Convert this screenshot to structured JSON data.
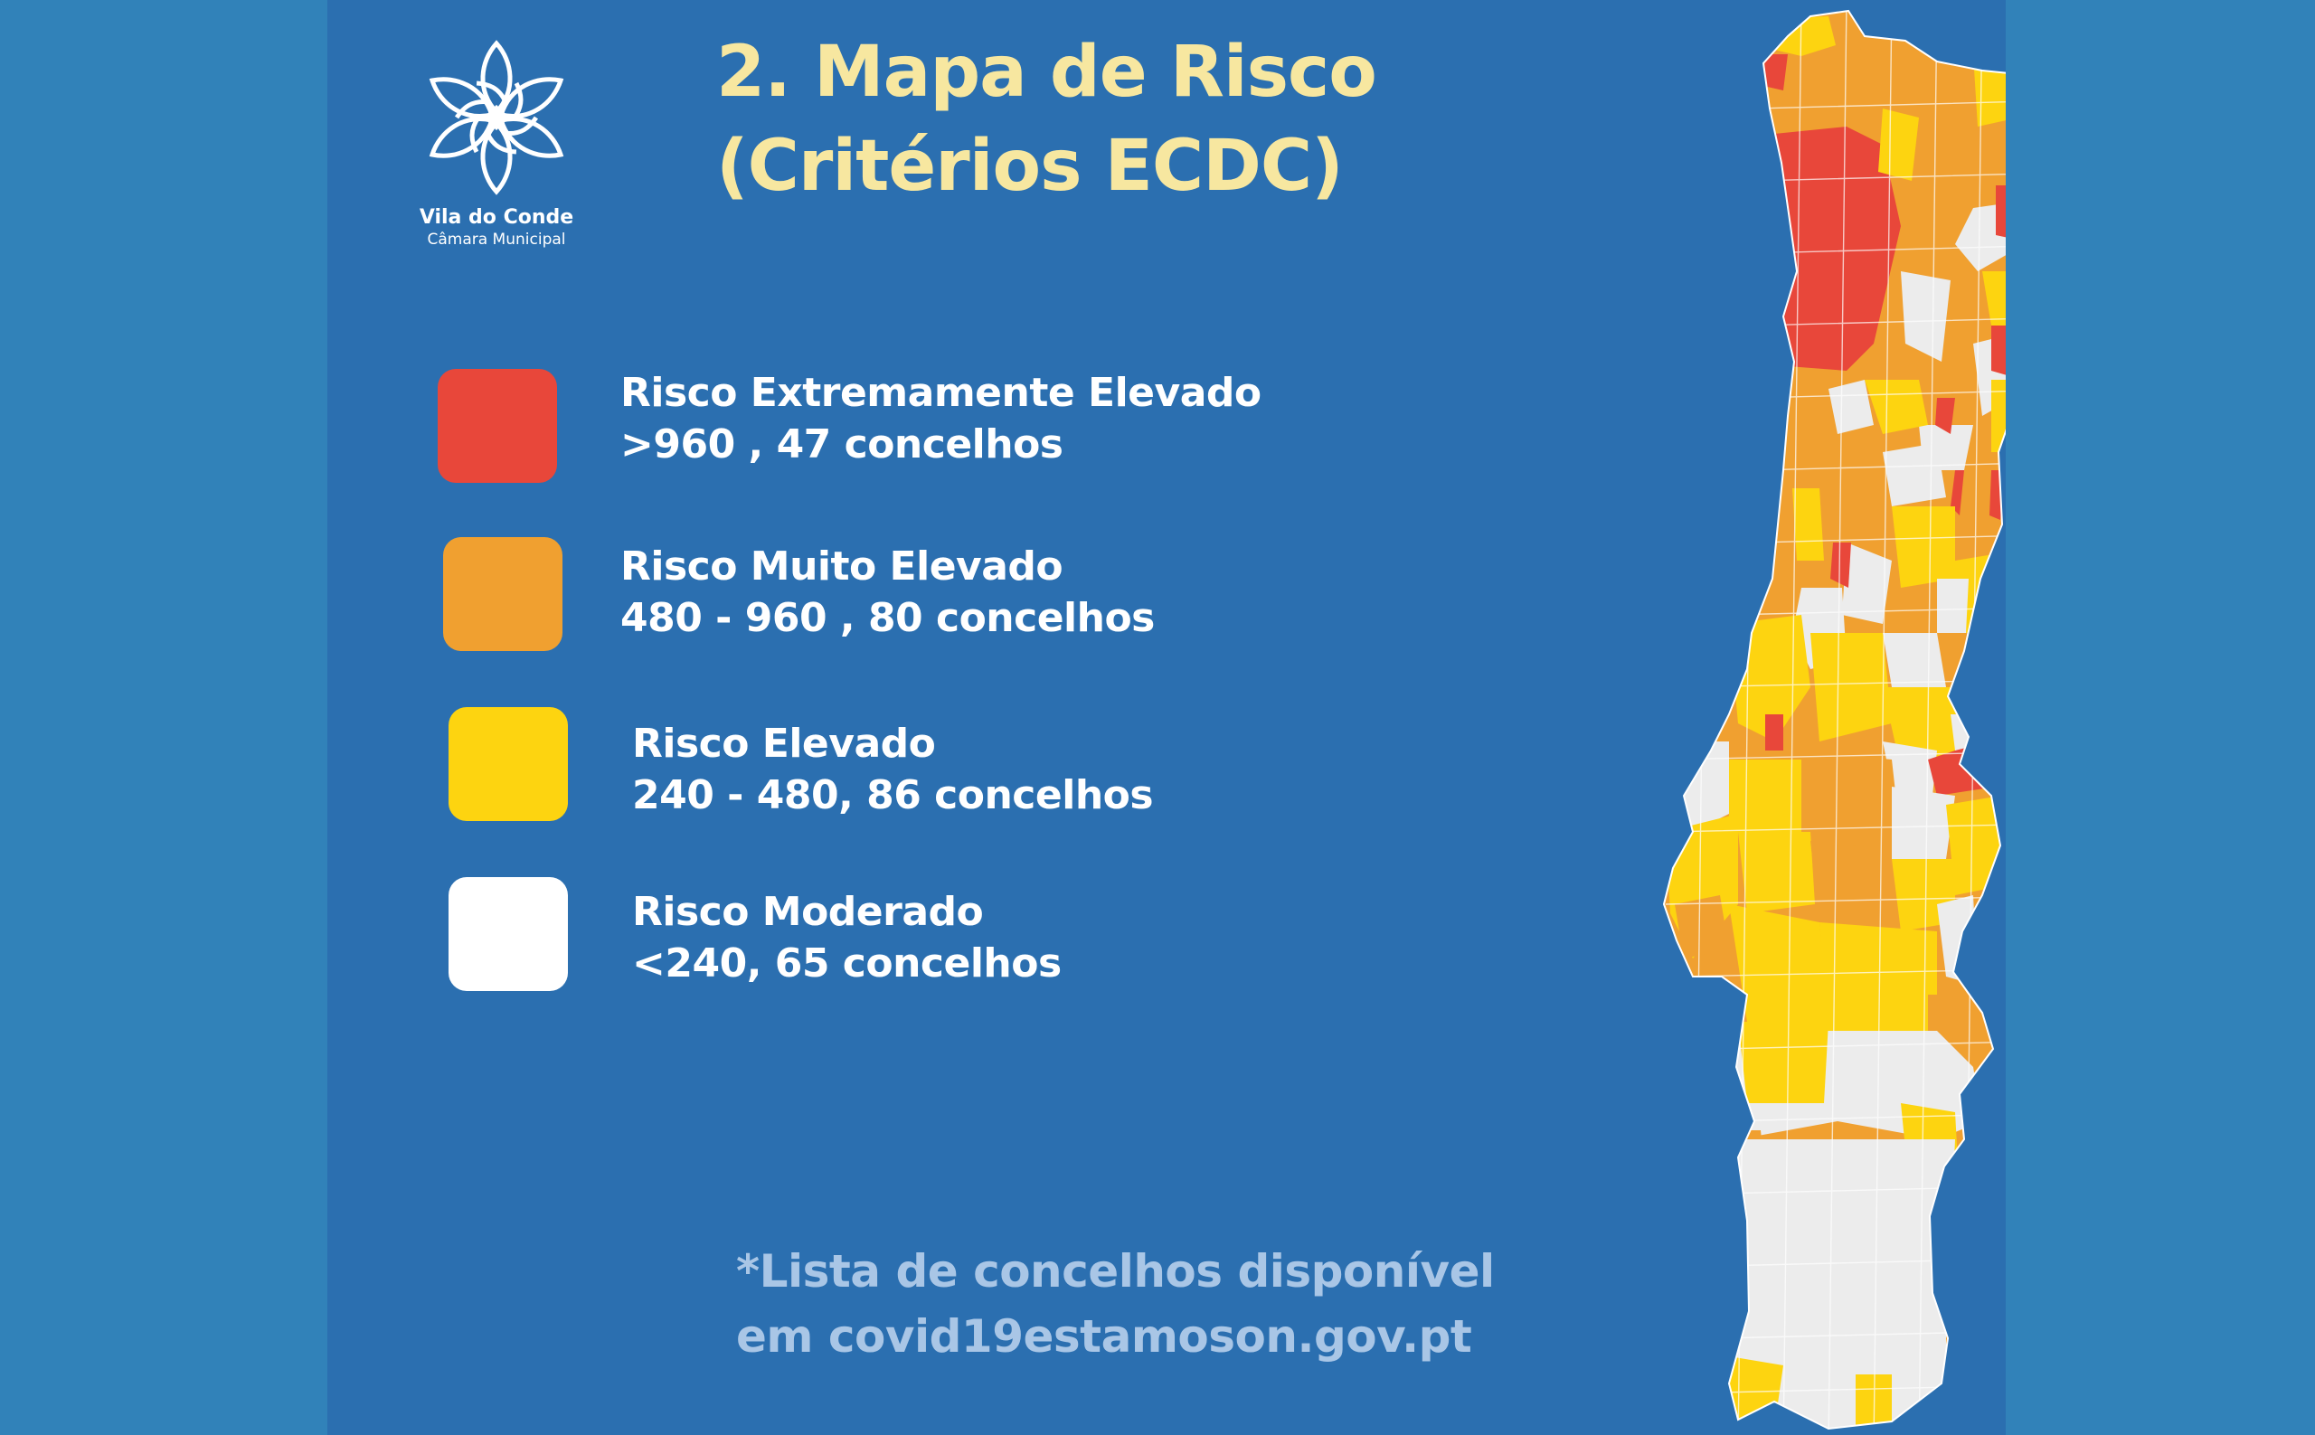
{
  "logo": {
    "name": "Vila do Conde",
    "subtitle": "Câmara Municipal",
    "icon": "flower-logo-icon"
  },
  "title": {
    "line1": "2. Mapa de Risco",
    "line2": "(Critérios ECDC)"
  },
  "legend": [
    {
      "label": "Risco Extremamente Elevado",
      "range": ">960 , 47 concelhos",
      "color": "#e8473a"
    },
    {
      "label": "Risco Muito Elevado",
      "range": "480 - 960 , 80 concelhos",
      "color": "#f0a030"
    },
    {
      "label": "Risco Elevado",
      "range": "240 - 480, 86 concelhos",
      "color": "#fdd410"
    },
    {
      "label": "Risco Moderado",
      "range": "<240, 65 concelhos",
      "color": "#ffffff"
    }
  ],
  "footnote": {
    "line1": "*Lista de concelhos disponível",
    "line2": "em covid19estamoson.gov.pt"
  },
  "map": {
    "region": "Portugal",
    "colors": {
      "extreme": "#e8473a",
      "very_high": "#f0a030",
      "high": "#fdd410",
      "moderate": "#ececec",
      "border": "#ffffff"
    }
  }
}
